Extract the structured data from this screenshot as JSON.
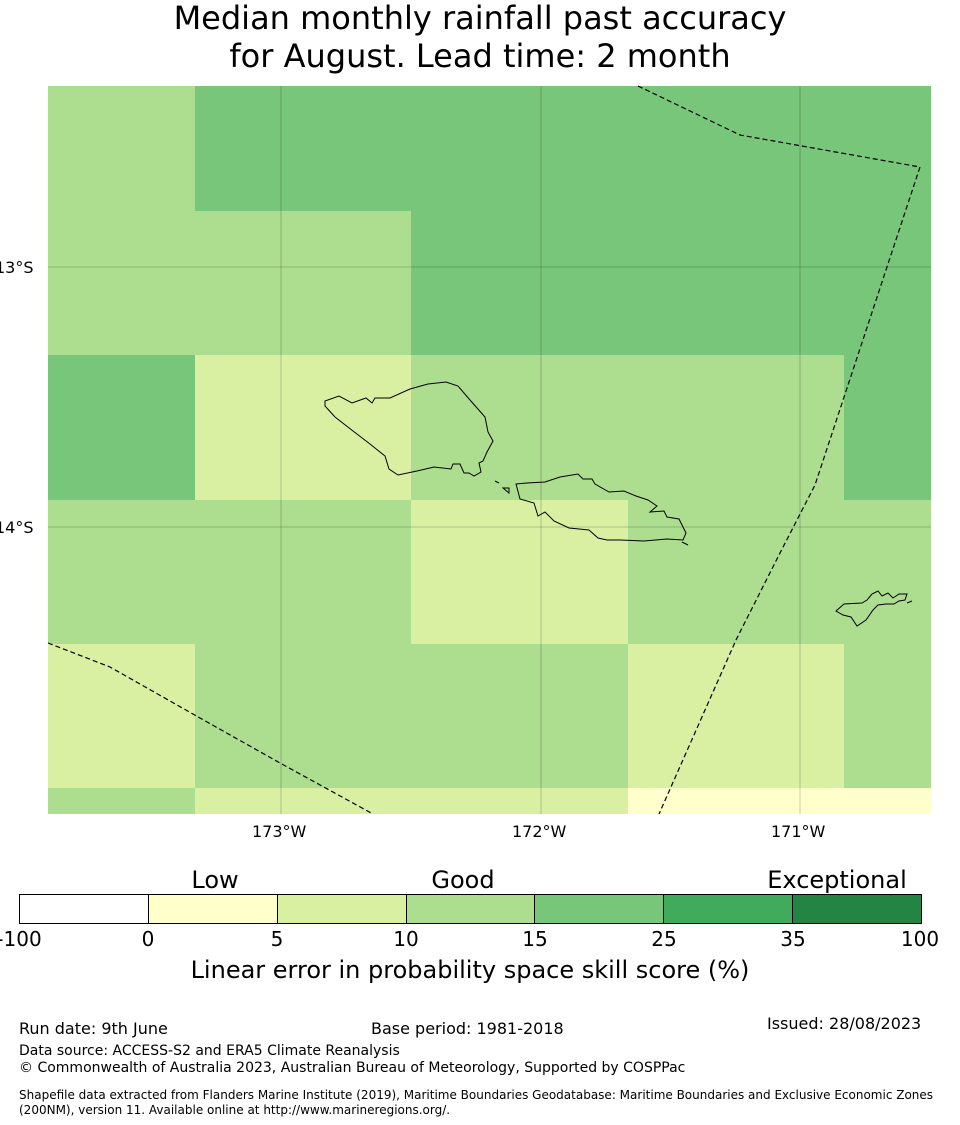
{
  "title": {
    "line1": "Median monthly rainfall past accuracy",
    "line2": "for August. Lead time: 2 month"
  },
  "map": {
    "lat_labels": [
      "13°S",
      "14°S"
    ],
    "lon_labels": [
      "173°W",
      "172°W",
      "171°W"
    ],
    "grid_rows": [
      [
        "10-15",
        "15-25",
        "15-25",
        "15-25",
        "15-25",
        "15-25"
      ],
      [
        "10-15",
        "10-15",
        "15-25",
        "15-25",
        "15-25",
        "15-25"
      ],
      [
        "15-25",
        "5-10",
        "10-15",
        "10-15",
        "10-15",
        "15-25"
      ],
      [
        "10-15",
        "10-15",
        "5-10",
        "10-15",
        "10-15",
        "10-15"
      ],
      [
        "5-10",
        "10-15",
        "10-15",
        "5-10",
        "5-10",
        "10-15"
      ],
      [
        "10-15",
        "5-10",
        "5-10",
        "0-5",
        "0-5",
        "0-5"
      ]
    ],
    "boundary_style": "dashed",
    "coastline_color": "#000000"
  },
  "colorbar": {
    "categories": [
      "Low",
      "Good",
      "Exceptional"
    ],
    "ticks": [
      "-100",
      "0",
      "5",
      "10",
      "15",
      "25",
      "35",
      "100"
    ],
    "colors": [
      "#ffffff",
      "#ffffcc",
      "#d9f0a3",
      "#addd8e",
      "#78c679",
      "#41ab5d",
      "#238443"
    ],
    "label": "Linear error in probability space skill score (%)"
  },
  "footer": {
    "run_date": "Run date: 9th June",
    "base_period": "Base period: 1981-2018",
    "issued": "Issued: 28/08/2023",
    "data_source": "Data source: ACCESS-S2 and ERA5 Climate Reanalysis",
    "copyright": "© Commonwealth of Australia 2023, Australian Bureau of Meteorology, Supported by COSPPac",
    "shapefile_line1": "Shapefile data extracted from Flanders Marine Institute (2019), Maritime Boundaries Geodatabase: Maritime Boundaries and Exclusive Economic Zones",
    "shapefile_line2": "(200NM), version 11. Available online at http://www.marineregions.org/."
  }
}
